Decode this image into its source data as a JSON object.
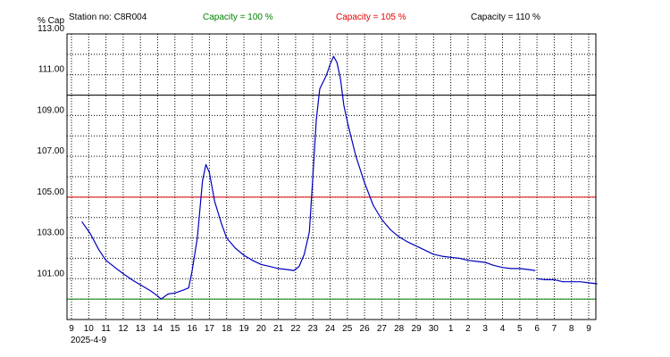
{
  "header": {
    "ylabel": "% Cap",
    "station": "Station no: C8R004",
    "legend": [
      {
        "label": "Capacity = 100 %",
        "color": "#008000"
      },
      {
        "label": "Capacity = 105 %",
        "color": "#e00000"
      },
      {
        "label": "Capacity = 110 %",
        "color": "#000000"
      }
    ]
  },
  "chart_data": {
    "type": "line",
    "title": "",
    "xlabel": "",
    "ylabel": "% Cap",
    "date_label": "2025-4-9",
    "ylim": [
      99.0,
      113.0
    ],
    "y_ticks": [
      "113.00",
      "111.00",
      "109.00",
      "107.00",
      "105.00",
      "103.00",
      "101.00"
    ],
    "y_tick_values": [
      113,
      111,
      109,
      107,
      105,
      103,
      101
    ],
    "x_ticks": [
      "9",
      "10",
      "11",
      "12",
      "13",
      "14",
      "15",
      "16",
      "17",
      "18",
      "19",
      "20",
      "21",
      "22",
      "23",
      "24",
      "25",
      "26",
      "27",
      "28",
      "29",
      "30",
      "1",
      "2",
      "3",
      "4",
      "5",
      "6",
      "7",
      "8",
      "9"
    ],
    "grid": true,
    "line_color": "#0000c0",
    "reference_lines": [
      {
        "value": 100,
        "color": "#008000"
      },
      {
        "value": 105,
        "color": "#e00000"
      },
      {
        "value": 110,
        "color": "#000000"
      }
    ],
    "series": [
      {
        "segments": [
          [
            [
              9.6,
              103.8
            ],
            [
              10.1,
              103.2
            ],
            [
              10.6,
              102.4
            ],
            [
              11.0,
              101.9
            ],
            [
              11.6,
              101.5
            ],
            [
              12.0,
              101.25
            ],
            [
              12.6,
              100.9
            ],
            [
              13.0,
              100.7
            ],
            [
              13.6,
              100.4
            ],
            [
              14.0,
              100.15
            ],
            [
              14.2,
              100.0
            ],
            [
              14.6,
              100.25
            ],
            [
              15.0,
              100.3
            ],
            [
              15.5,
              100.45
            ],
            [
              15.8,
              100.55
            ],
            [
              16.0,
              101.4
            ],
            [
              16.3,
              103.0
            ],
            [
              16.6,
              105.8
            ],
            [
              16.8,
              106.6
            ],
            [
              17.0,
              106.2
            ],
            [
              17.3,
              104.8
            ],
            [
              17.7,
              103.7
            ],
            [
              18.0,
              103.0
            ],
            [
              18.5,
              102.5
            ],
            [
              19.0,
              102.15
            ],
            [
              19.5,
              101.9
            ],
            [
              20.0,
              101.7
            ],
            [
              20.5,
              101.6
            ],
            [
              21.0,
              101.5
            ],
            [
              21.5,
              101.45
            ],
            [
              21.9,
              101.4
            ],
            [
              22.2,
              101.6
            ],
            [
              22.5,
              102.2
            ],
            [
              22.8,
              103.3
            ],
            [
              23.0,
              106.0
            ],
            [
              23.2,
              108.8
            ],
            [
              23.4,
              110.3
            ],
            [
              23.8,
              111.0
            ],
            [
              24.0,
              111.5
            ],
            [
              24.2,
              111.9
            ],
            [
              24.4,
              111.6
            ],
            [
              24.6,
              110.8
            ],
            [
              24.8,
              109.5
            ],
            [
              25.0,
              108.7
            ],
            [
              25.2,
              108.0
            ],
            [
              25.5,
              107.0
            ],
            [
              26.0,
              105.7
            ],
            [
              26.5,
              104.6
            ],
            [
              27.0,
              103.9
            ],
            [
              27.5,
              103.4
            ],
            [
              28.0,
              103.05
            ],
            [
              28.5,
              102.8
            ],
            [
              29.0,
              102.6
            ],
            [
              29.5,
              102.4
            ],
            [
              30.0,
              102.2
            ],
            [
              30.5,
              102.1
            ],
            [
              31.0,
              102.05
            ],
            [
              31.5,
              102.0
            ],
            [
              32.0,
              101.9
            ],
            [
              32.5,
              101.85
            ],
            [
              33.0,
              101.8
            ],
            [
              33.5,
              101.65
            ],
            [
              34.0,
              101.55
            ],
            [
              34.5,
              101.5
            ],
            [
              35.0,
              101.5
            ],
            [
              35.5,
              101.45
            ],
            [
              35.9,
              101.4
            ]
          ],
          [
            [
              36.0,
              101.0
            ],
            [
              36.5,
              100.95
            ],
            [
              37.0,
              100.95
            ],
            [
              37.5,
              100.85
            ],
            [
              38.0,
              100.85
            ],
            [
              38.5,
              100.85
            ],
            [
              39.0,
              100.8
            ],
            [
              39.5,
              100.75
            ]
          ]
        ]
      }
    ]
  }
}
